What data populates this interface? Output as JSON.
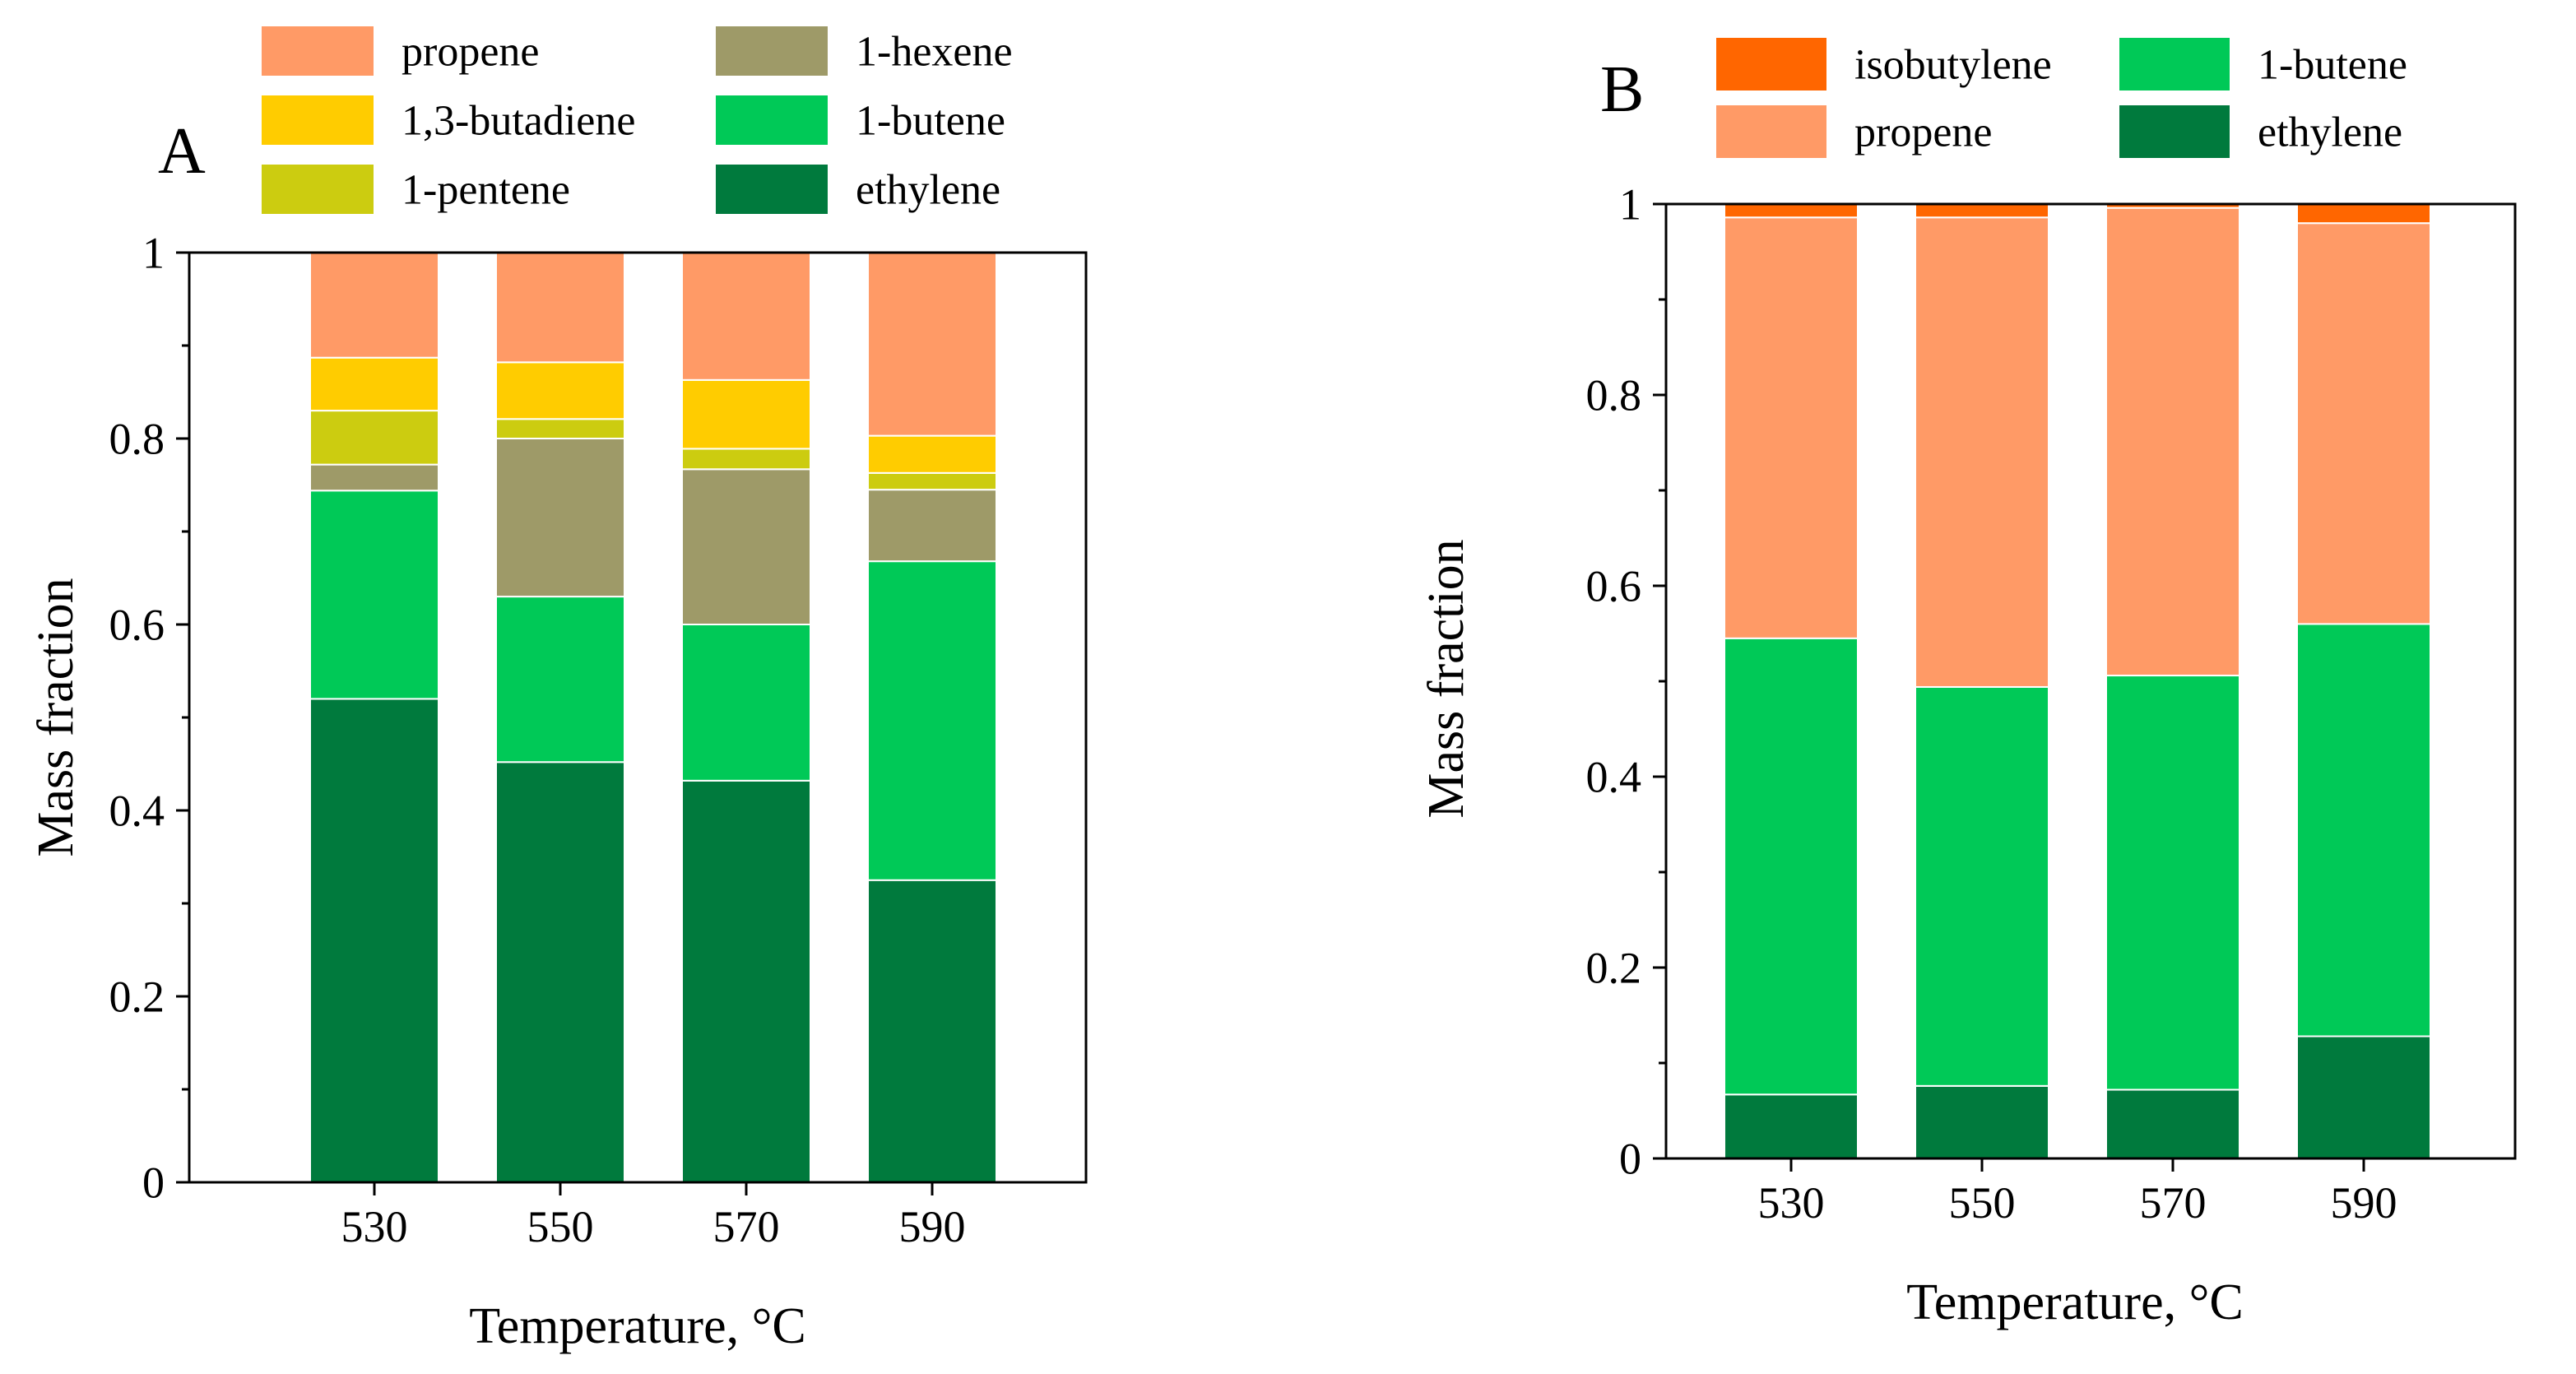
{
  "chart_data": [
    {
      "type": "bar",
      "stacked": true,
      "panel_label": "A",
      "categories": [
        "530",
        "550",
        "570",
        "590"
      ],
      "xlabel": "Temperature, °C",
      "ylabel": "Mass fraction",
      "ylim": [
        0,
        1
      ],
      "yticks": [
        "0",
        "0.2",
        "0.4",
        "0.6",
        "0.8",
        "1"
      ],
      "grid": false,
      "legend_position": "top",
      "series": [
        {
          "name": "ethylene",
          "color": "#007A3D",
          "values": [
            0.52,
            0.452,
            0.432,
            0.325
          ]
        },
        {
          "name": "1-butene",
          "color": "#00C957",
          "values": [
            0.224,
            0.178,
            0.168,
            0.343
          ]
        },
        {
          "name": "1-hexene",
          "color": "#9E9A68",
          "values": [
            0.028,
            0.17,
            0.167,
            0.077
          ]
        },
        {
          "name": "1-pentene",
          "color": "#CCCC10",
          "values": [
            0.058,
            0.021,
            0.022,
            0.018
          ]
        },
        {
          "name": "1,3-butadiene",
          "color": "#FFCC00",
          "values": [
            0.057,
            0.061,
            0.074,
            0.04
          ]
        },
        {
          "name": "propene",
          "color": "#FF9A66",
          "values": [
            0.113,
            0.118,
            0.137,
            0.197
          ]
        }
      ],
      "legend_order": [
        "propene",
        "1-hexene",
        "1,3-butadiene",
        "1-butene",
        "1-pentene",
        "ethylene"
      ]
    },
    {
      "type": "bar",
      "stacked": true,
      "panel_label": "B",
      "categories": [
        "530",
        "550",
        "570",
        "590"
      ],
      "xlabel": "Temperature, °C",
      "ylabel": "Mass fraction",
      "ylim": [
        0,
        1
      ],
      "yticks": [
        "0",
        "0.2",
        "0.4",
        "0.6",
        "0.8",
        "1"
      ],
      "grid": false,
      "legend_position": "top",
      "series": [
        {
          "name": "ethylene",
          "color": "#007A3D",
          "values": [
            0.067,
            0.076,
            0.072,
            0.128
          ]
        },
        {
          "name": "1-butene",
          "color": "#00C957",
          "values": [
            0.478,
            0.418,
            0.434,
            0.432
          ]
        },
        {
          "name": "propene",
          "color": "#FF9A66",
          "values": [
            0.441,
            0.492,
            0.49,
            0.42
          ]
        },
        {
          "name": "isobutylene",
          "color": "#FF6600",
          "values": [
            0.014,
            0.014,
            0.004,
            0.02
          ]
        }
      ],
      "legend_order": [
        "isobutylene",
        "1-butene",
        "propene",
        "ethylene"
      ]
    }
  ]
}
